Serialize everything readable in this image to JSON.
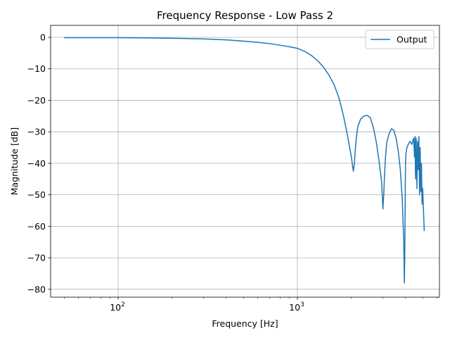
{
  "chart_data": {
    "type": "line",
    "title": "Frequency Response - Low Pass 2",
    "xlabel": "Frequency [Hz]",
    "ylabel": "Magnitude [dB]",
    "xscale": "log",
    "xlim": [
      42,
      6200
    ],
    "ylim": [
      -82.5,
      3.8
    ],
    "grid": true,
    "legend_placement": "top-right",
    "x_ticks": [
      100,
      1000
    ],
    "x_tick_labels": [
      {
        "base": "10",
        "exp": "2"
      },
      {
        "base": "10",
        "exp": "3"
      }
    ],
    "y_ticks": [
      0,
      -10,
      -20,
      -30,
      -40,
      -50,
      -60,
      -70,
      -80
    ],
    "y_tick_labels": [
      "0",
      "−10",
      "−20",
      "−30",
      "−40",
      "−50",
      "−60",
      "−70",
      "−80"
    ],
    "series": [
      {
        "name": "Output",
        "color": "#1f77b4",
        "x": [
          50,
          100,
          150,
          200,
          300,
          400,
          500,
          600,
          700,
          800,
          900,
          1000,
          1100,
          1200,
          1300,
          1400,
          1500,
          1600,
          1700,
          1800,
          1900,
          2000,
          2050,
          2080,
          2100,
          2130,
          2170,
          2250,
          2350,
          2450,
          2550,
          2650,
          2750,
          2850,
          2950,
          3000,
          3030,
          3060,
          3100,
          3150,
          3250,
          3350,
          3450,
          3550,
          3650,
          3750,
          3850,
          3920,
          3950,
          3970,
          3990,
          4000,
          4010,
          4030,
          4080,
          4150,
          4250,
          4350,
          4450,
          4500,
          4530,
          4560,
          4600,
          4640,
          4680,
          4720,
          4760,
          4800,
          4840,
          4880,
          4920,
          4960,
          5000,
          5050,
          5100
        ],
        "y": [
          -0.1,
          -0.1,
          -0.2,
          -0.3,
          -0.5,
          -0.8,
          -1.2,
          -1.6,
          -2.0,
          -2.5,
          -3.0,
          -3.5,
          -4.5,
          -5.8,
          -7.5,
          -9.5,
          -12.0,
          -15.0,
          -19.0,
          -24.5,
          -31.0,
          -38.0,
          -42.5,
          -40.0,
          -36.0,
          -32.0,
          -28.5,
          -26.0,
          -25.0,
          -24.8,
          -25.5,
          -28.5,
          -33.0,
          -39.0,
          -46.0,
          -54.5,
          -50.0,
          -44.0,
          -38.0,
          -33.5,
          -30.5,
          -29.0,
          -29.5,
          -32.0,
          -36.0,
          -42.0,
          -52.0,
          -65.0,
          -78.0,
          -70.0,
          -55.0,
          -45.0,
          -40.0,
          -37.0,
          -35.0,
          -34.0,
          -33.0,
          -34.0,
          -32.0,
          -38.0,
          -31.5,
          -45.0,
          -32.0,
          -48.0,
          -33.0,
          -42.0,
          -31.5,
          -50.0,
          -35.0,
          -49.0,
          -40.0,
          -53.0,
          -48.0,
          -55.0,
          -61.5
        ]
      }
    ]
  }
}
